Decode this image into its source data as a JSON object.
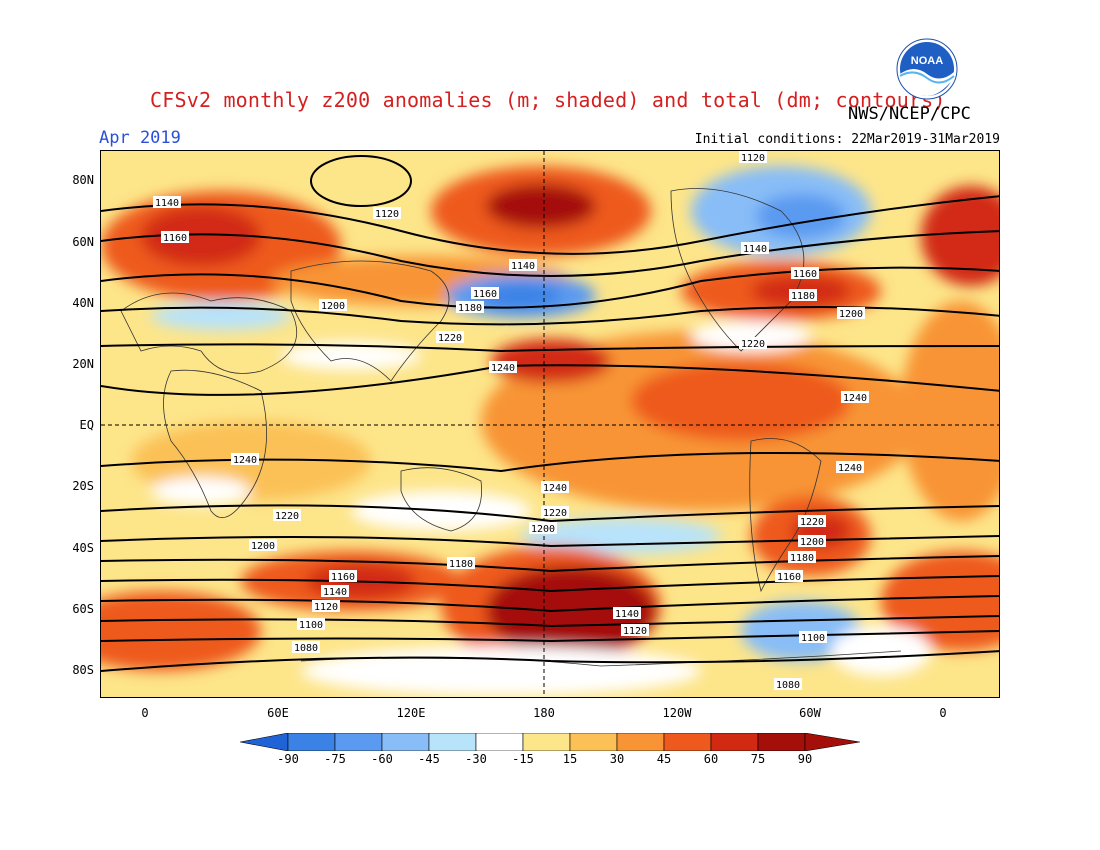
{
  "title": "CFSv2 monthly z200 anomalies (m; shaded) and total (dm; contours)",
  "source": "NWS/NCEP/CPC",
  "logo_text": "NOAA",
  "valid_month": "Apr 2019",
  "initial_conditions": "Initial conditions: 22Mar2019-31Mar2019",
  "lat_labels": [
    "80N",
    "60N",
    "40N",
    "20N",
    "EQ",
    "20S",
    "40S",
    "60S",
    "80S"
  ],
  "lon_labels": [
    "0",
    "60E",
    "120E",
    "180",
    "120W",
    "60W",
    "0"
  ],
  "colorbar": {
    "labels": [
      "-90",
      "-75",
      "-60",
      "-45",
      "-30",
      "-15",
      "15",
      "30",
      "45",
      "60",
      "75",
      "90"
    ],
    "colors": [
      "#1f63d6",
      "#3b82e6",
      "#5a9af0",
      "#88bdf7",
      "#b7e3fb",
      "#ffffff",
      "#fde58a",
      "#fbc156",
      "#f89435",
      "#ee5a1e",
      "#d22a12",
      "#a50f0a"
    ]
  },
  "contour_labels": [
    "1120",
    "1140",
    "1160",
    "1180",
    "1200",
    "1220",
    "1240",
    "1100",
    "1080"
  ]
}
